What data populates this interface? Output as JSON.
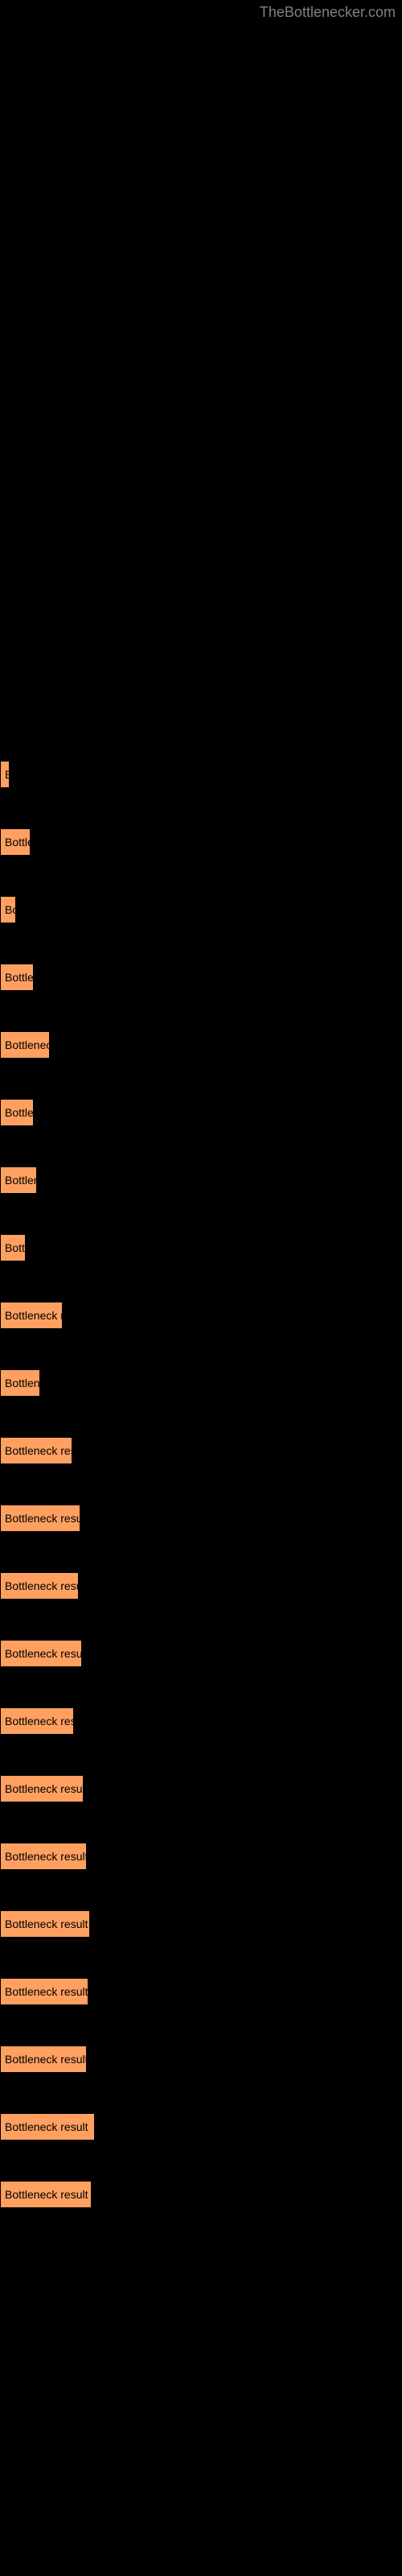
{
  "watermark": "TheBottlenecker.com",
  "chart": {
    "type": "bar",
    "orientation": "horizontal",
    "bar_color": "#ffa060",
    "bar_border_color": "#000000",
    "background_color": "#000000",
    "text_color": "#000000",
    "font_size": 14,
    "bar_spacing": 50,
    "bars": [
      {
        "label": "B",
        "width": 8
      },
      {
        "label": "Bottler",
        "width": 38
      },
      {
        "label": "Bo",
        "width": 20
      },
      {
        "label": "Bottler",
        "width": 42
      },
      {
        "label": "Bottleneck",
        "width": 62
      },
      {
        "label": "Bottler",
        "width": 42
      },
      {
        "label": "Bottlenec",
        "width": 46
      },
      {
        "label": "Bottle",
        "width": 32
      },
      {
        "label": "Bottleneck r",
        "width": 78
      },
      {
        "label": "Bottlene",
        "width": 50
      },
      {
        "label": "Bottleneck resu",
        "width": 90
      },
      {
        "label": "Bottleneck result",
        "width": 100
      },
      {
        "label": "Bottleneck result",
        "width": 98
      },
      {
        "label": "Bottleneck result",
        "width": 102
      },
      {
        "label": "Bottleneck res",
        "width": 92
      },
      {
        "label": "Bottleneck result",
        "width": 104
      },
      {
        "label": "Bottleneck result",
        "width": 108
      },
      {
        "label": "Bottleneck result",
        "width": 112
      },
      {
        "label": "Bottleneck result",
        "width": 110
      },
      {
        "label": "Bottleneck result",
        "width": 108
      },
      {
        "label": "Bottleneck result",
        "width": 118
      },
      {
        "label": "Bottleneck result",
        "width": 114
      }
    ]
  }
}
